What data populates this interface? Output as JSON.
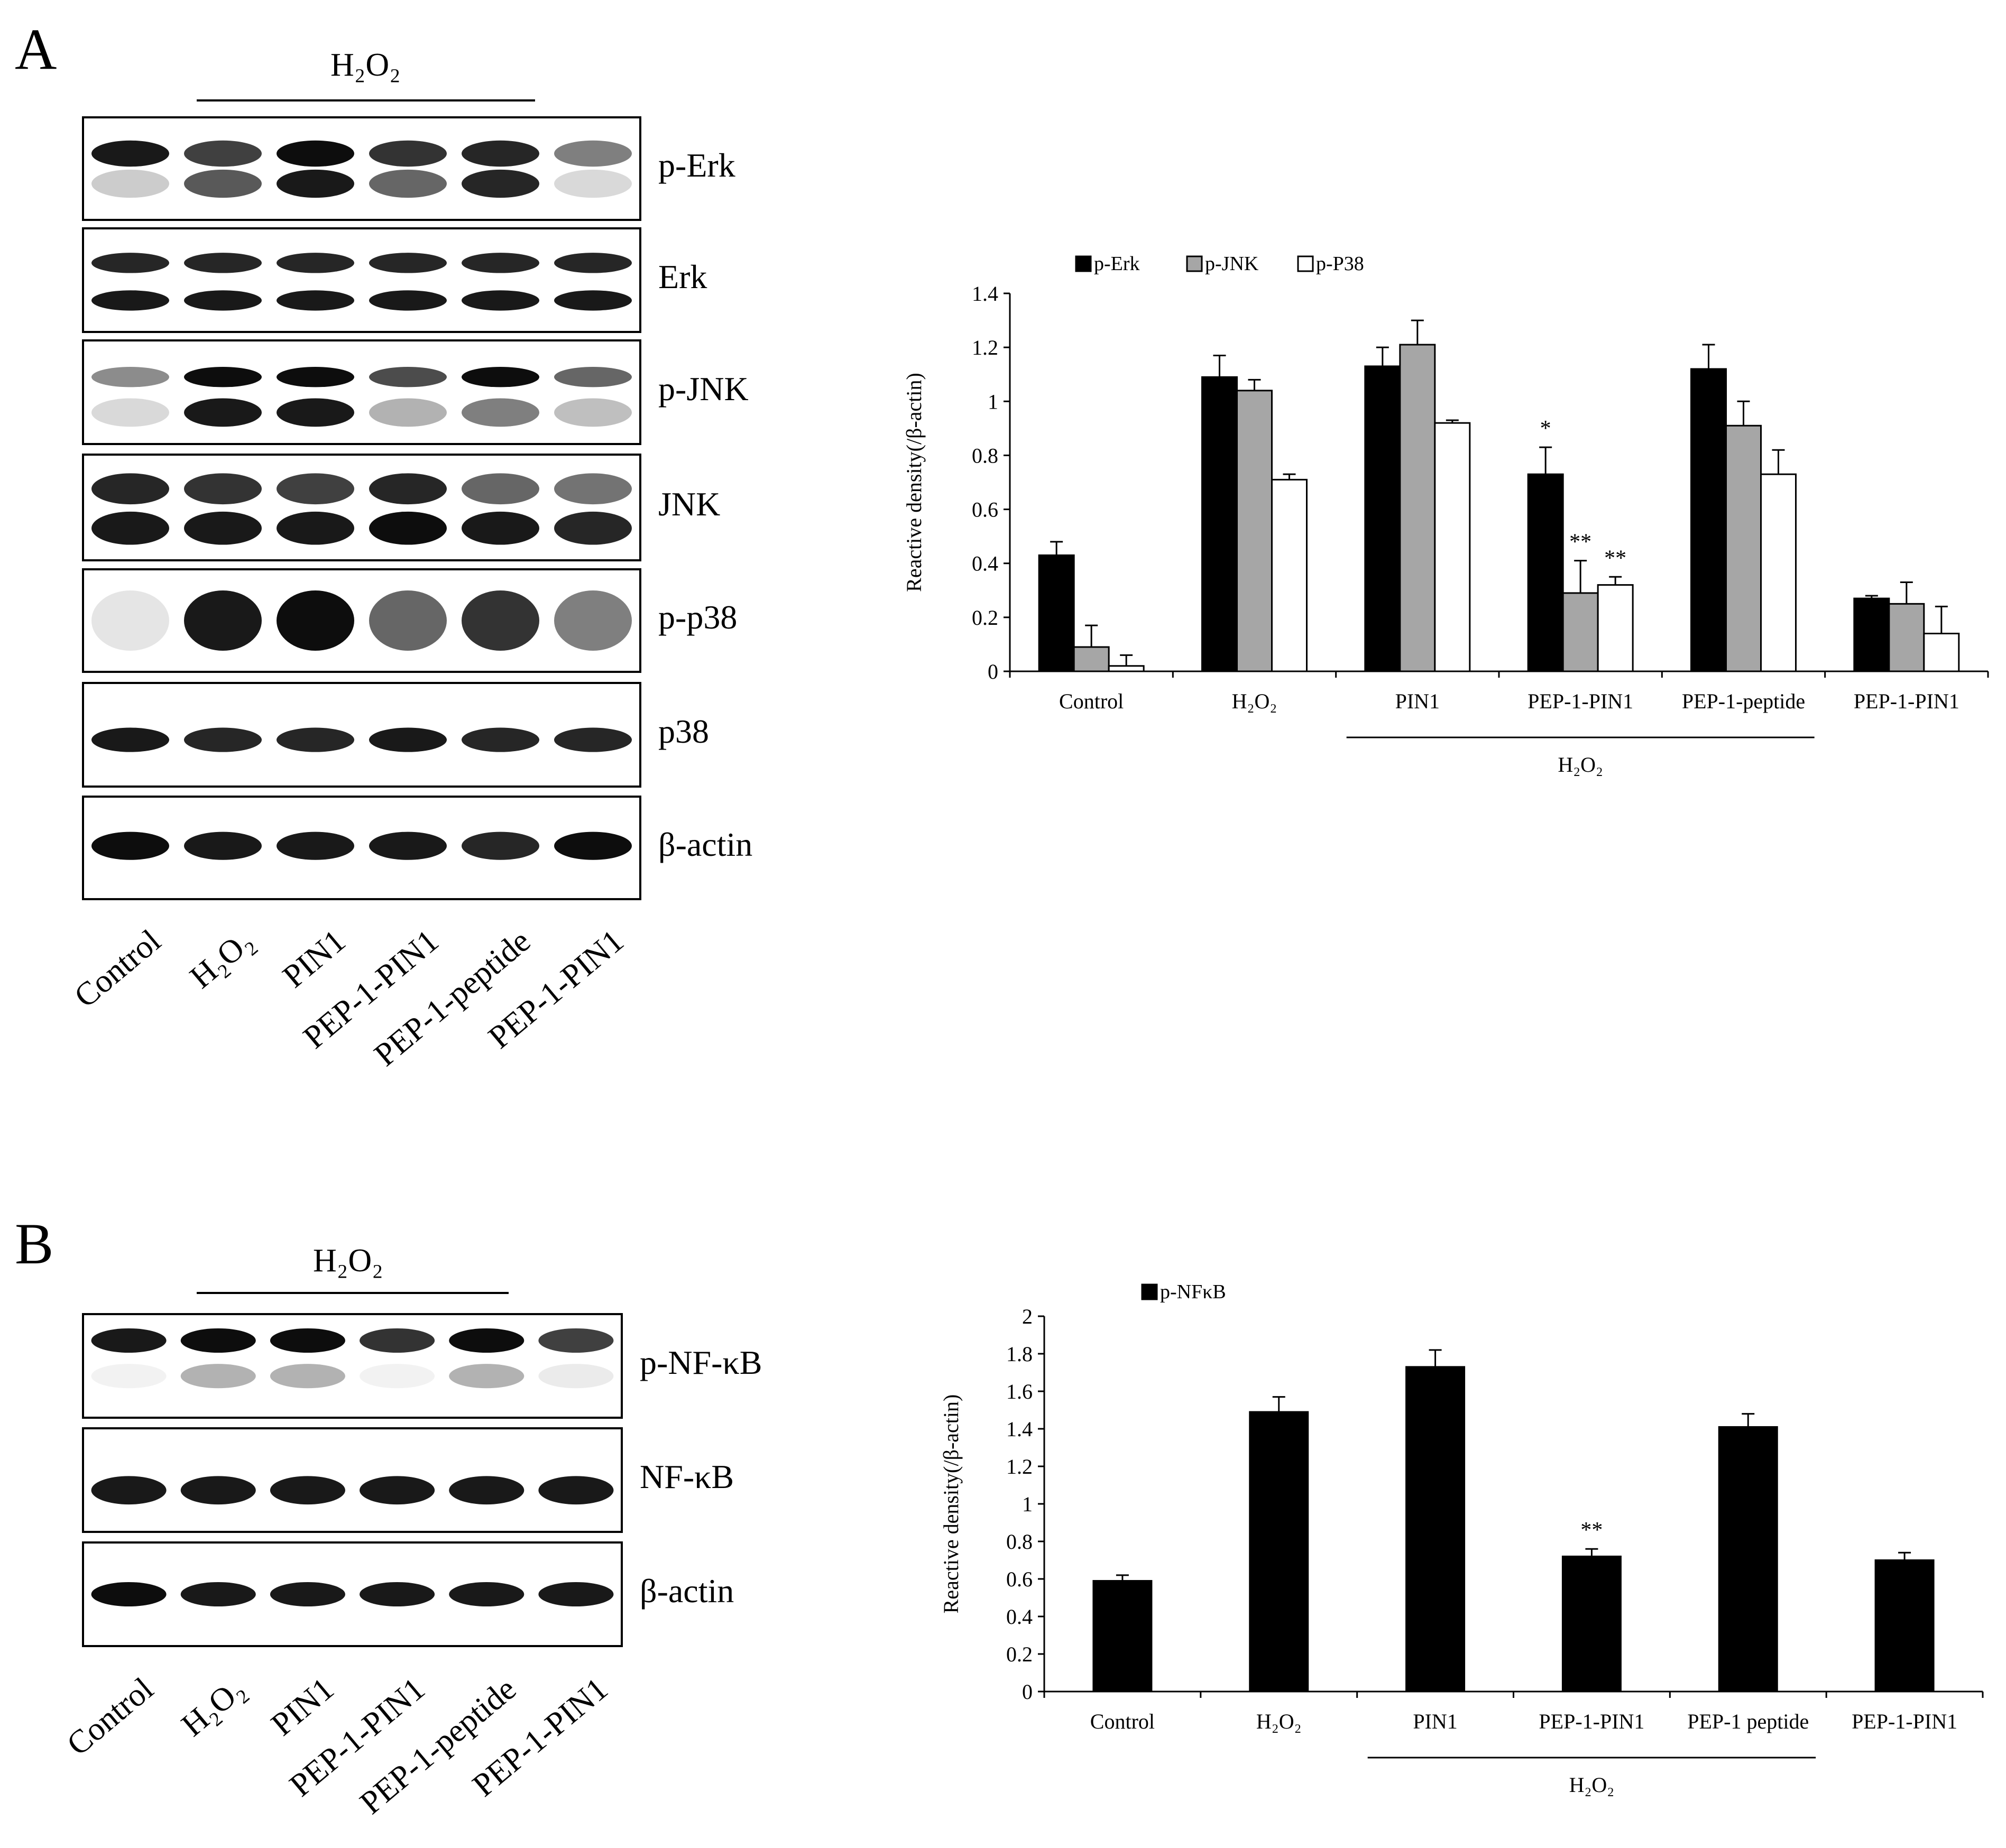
{
  "panel_a": {
    "letter": "A",
    "treatment_header": "H₂O₂",
    "blot_labels": [
      "p-Erk",
      "Erk",
      "p-JNK",
      "JNK",
      "p-p38",
      "p38",
      "β-actin"
    ],
    "lane_labels": [
      "Control",
      "H₂O₂",
      "PIN1",
      "PEP-1-PIN1",
      "PEP-1-peptide",
      "PEP-1-PIN1"
    ]
  },
  "panel_b": {
    "letter": "B",
    "treatment_header": "H₂O₂",
    "blot_labels": [
      "p-NF-κB",
      "NF-κB",
      "β-actin"
    ],
    "lane_labels": [
      "Control",
      "H₂O₂",
      "PIN1",
      "PEP-1-PIN1",
      "PEP-1-peptide",
      "PEP-1-PIN1"
    ]
  },
  "colors": {
    "series_black": "#000000",
    "series_gray": "#a6a6a6",
    "series_white": "#ffffff"
  },
  "chart_data": [
    {
      "type": "bar",
      "categories": [
        "Control",
        "H₂O₂",
        "PIN1",
        "PEP-1-PIN1",
        "PEP-1-peptide",
        "PEP-1-PIN1"
      ],
      "ylabel": "Reactive density(/β-actin)",
      "ylim": [
        0,
        1.4
      ],
      "yticks": [
        "0",
        "0.2",
        "0.4",
        "0.6",
        "0.8",
        "1",
        "1.2",
        "1.4"
      ],
      "group_label": "H₂O₂",
      "legend_position": "top-left",
      "series": [
        {
          "name": "p-Erk",
          "color": "#000000",
          "values": [
            0.43,
            1.09,
            1.13,
            0.73,
            1.12,
            0.27
          ],
          "errors": [
            0.05,
            0.08,
            0.07,
            0.1,
            0.09,
            0.01
          ],
          "significance": [
            "",
            "",
            "",
            "*",
            "",
            ""
          ]
        },
        {
          "name": "p-JNK",
          "color": "#a6a6a6",
          "values": [
            0.09,
            1.04,
            1.21,
            0.29,
            0.91,
            0.25
          ],
          "errors": [
            0.08,
            0.04,
            0.09,
            0.12,
            0.09,
            0.08
          ],
          "significance": [
            "",
            "",
            "",
            "**",
            "",
            ""
          ]
        },
        {
          "name": "p-P38",
          "color": "#ffffff",
          "values": [
            0.02,
            0.71,
            0.92,
            0.32,
            0.73,
            0.14
          ],
          "errors": [
            0.04,
            0.02,
            0.01,
            0.03,
            0.09,
            0.1
          ],
          "significance": [
            "",
            "",
            "",
            "**",
            "",
            ""
          ]
        }
      ]
    },
    {
      "type": "bar",
      "categories": [
        "Control",
        "H₂O₂",
        "PIN1",
        "PEP-1-PIN1",
        "PEP-1 peptide",
        "PEP-1-PIN1"
      ],
      "ylabel": "Reactive density(/β-actin)",
      "ylim": [
        0,
        2
      ],
      "yticks": [
        "0",
        "0.2",
        "0.4",
        "0.6",
        "0.8",
        "1",
        "1.2",
        "1.4",
        "1.6",
        "1.8",
        "2"
      ],
      "group_label": "H₂O₂",
      "legend_position": "top-left",
      "series": [
        {
          "name": "p-NFκB",
          "color": "#000000",
          "values": [
            0.59,
            1.49,
            1.73,
            0.72,
            1.41,
            0.7
          ],
          "errors": [
            0.03,
            0.08,
            0.09,
            0.04,
            0.07,
            0.04
          ],
          "significance": [
            "",
            "",
            "",
            "**",
            "",
            ""
          ]
        }
      ]
    }
  ]
}
